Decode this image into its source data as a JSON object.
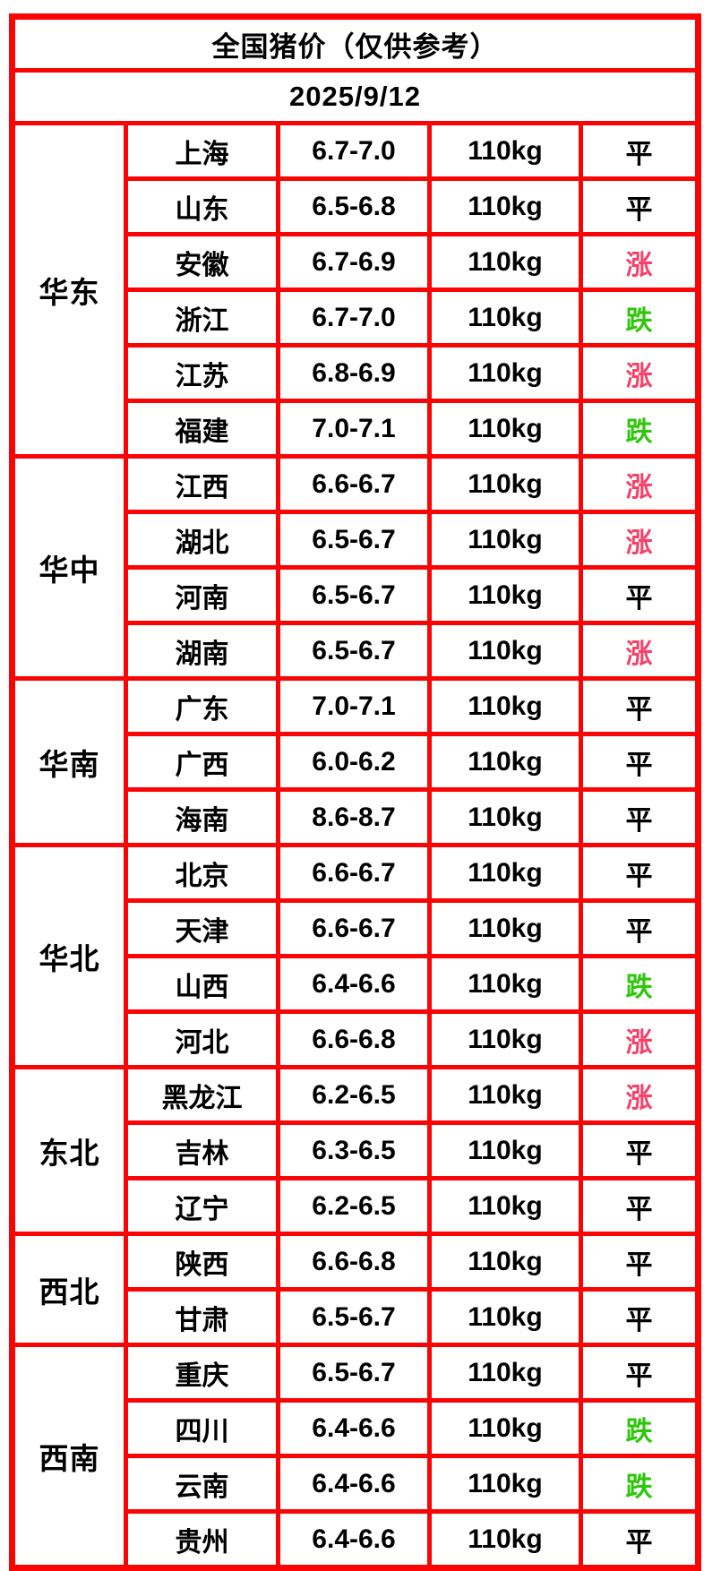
{
  "title": "全国猪价（仅供参考）",
  "date": "2025/9/12",
  "colors": {
    "banner_orange": "#EC6114",
    "border_red": "#FA0505",
    "up_red": "#F4426B",
    "down_green": "#2FC60D",
    "flat_black": "#000000"
  },
  "chart_data": {
    "type": "table",
    "title": "全国猪价（仅供参考）",
    "date": "2025/9/12",
    "weight_unit": "110kg",
    "status_legend": {
      "up": "涨",
      "down": "跌",
      "flat": "平"
    },
    "regions": [
      {
        "name": "华东",
        "rows": [
          {
            "province": "上海",
            "price": "6.7-7.0",
            "weight": "110kg",
            "status": "平",
            "trend": "flat"
          },
          {
            "province": "山东",
            "price": "6.5-6.8",
            "weight": "110kg",
            "status": "平",
            "trend": "flat"
          },
          {
            "province": "安徽",
            "price": "6.7-6.9",
            "weight": "110kg",
            "status": "涨",
            "trend": "up"
          },
          {
            "province": "浙江",
            "price": "6.7-7.0",
            "weight": "110kg",
            "status": "跌",
            "trend": "down"
          },
          {
            "province": "江苏",
            "price": "6.8-6.9",
            "weight": "110kg",
            "status": "涨",
            "trend": "up"
          },
          {
            "province": "福建",
            "price": "7.0-7.1",
            "weight": "110kg",
            "status": "跌",
            "trend": "down"
          }
        ]
      },
      {
        "name": "华中",
        "rows": [
          {
            "province": "江西",
            "price": "6.6-6.7",
            "weight": "110kg",
            "status": "涨",
            "trend": "up"
          },
          {
            "province": "湖北",
            "price": "6.5-6.7",
            "weight": "110kg",
            "status": "涨",
            "trend": "up"
          },
          {
            "province": "河南",
            "price": "6.5-6.7",
            "weight": "110kg",
            "status": "平",
            "trend": "flat"
          },
          {
            "province": "湖南",
            "price": "6.5-6.7",
            "weight": "110kg",
            "status": "涨",
            "trend": "up"
          }
        ]
      },
      {
        "name": "华南",
        "rows": [
          {
            "province": "广东",
            "price": "7.0-7.1",
            "weight": "110kg",
            "status": "平",
            "trend": "flat"
          },
          {
            "province": "广西",
            "price": "6.0-6.2",
            "weight": "110kg",
            "status": "平",
            "trend": "flat"
          },
          {
            "province": "海南",
            "price": "8.6-8.7",
            "weight": "110kg",
            "status": "平",
            "trend": "flat"
          }
        ]
      },
      {
        "name": "华北",
        "rows": [
          {
            "province": "北京",
            "price": "6.6-6.7",
            "weight": "110kg",
            "status": "平",
            "trend": "flat"
          },
          {
            "province": "天津",
            "price": "6.6-6.7",
            "weight": "110kg",
            "status": "平",
            "trend": "flat"
          },
          {
            "province": "山西",
            "price": "6.4-6.6",
            "weight": "110kg",
            "status": "跌",
            "trend": "down"
          },
          {
            "province": "河北",
            "price": "6.6-6.8",
            "weight": "110kg",
            "status": "涨",
            "trend": "up"
          }
        ]
      },
      {
        "name": "东北",
        "rows": [
          {
            "province": "黑龙江",
            "price": "6.2-6.5",
            "weight": "110kg",
            "status": "涨",
            "trend": "up"
          },
          {
            "province": "吉林",
            "price": "6.3-6.5",
            "weight": "110kg",
            "status": "平",
            "trend": "flat"
          },
          {
            "province": "辽宁",
            "price": "6.2-6.5",
            "weight": "110kg",
            "status": "平",
            "trend": "flat"
          }
        ]
      },
      {
        "name": "西北",
        "rows": [
          {
            "province": "陕西",
            "price": "6.6-6.8",
            "weight": "110kg",
            "status": "平",
            "trend": "flat"
          },
          {
            "province": "甘肃",
            "price": "6.5-6.7",
            "weight": "110kg",
            "status": "平",
            "trend": "flat"
          }
        ]
      },
      {
        "name": "西南",
        "rows": [
          {
            "province": "重庆",
            "price": "6.5-6.7",
            "weight": "110kg",
            "status": "平",
            "trend": "flat"
          },
          {
            "province": "四川",
            "price": "6.4-6.6",
            "weight": "110kg",
            "status": "跌",
            "trend": "down"
          },
          {
            "province": "云南",
            "price": "6.4-6.6",
            "weight": "110kg",
            "status": "跌",
            "trend": "down"
          },
          {
            "province": "贵州",
            "price": "6.4-6.6",
            "weight": "110kg",
            "status": "平",
            "trend": "flat"
          }
        ]
      }
    ]
  }
}
